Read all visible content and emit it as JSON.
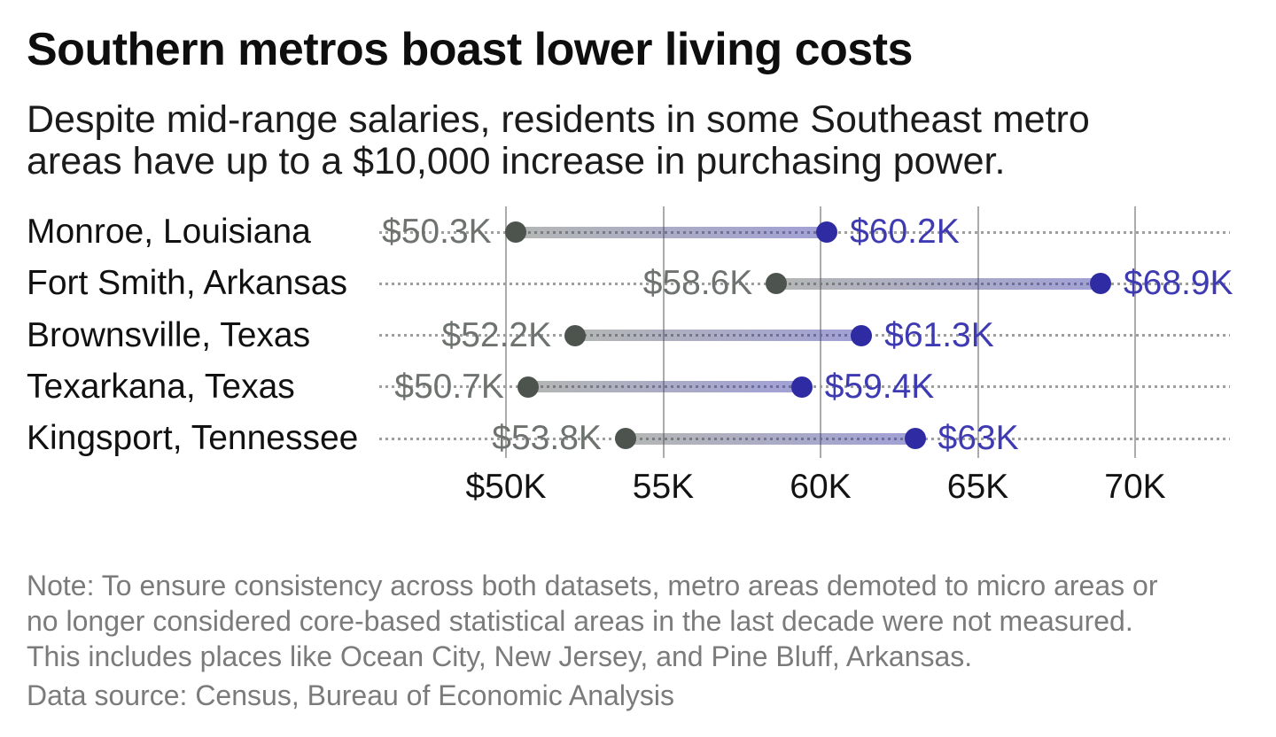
{
  "header": {
    "title": "Southern metros boast lower living costs",
    "subtitle_lines": [
      "Despite mid-range salaries, residents in some Southeast metro",
      "areas have up to a $10,000 increase in purchasing power."
    ]
  },
  "chart_data": {
    "type": "dumbbell",
    "title": "Southern metros boast lower living costs",
    "categories": [
      "Monroe, Louisiana",
      "Fort Smith, Arkansas",
      "Brownsville, Texas",
      "Texarkana, Texas",
      "Kingsport, Tennessee"
    ],
    "series": [
      {
        "name": "salary",
        "role": "start",
        "dot_color": "#4d544e",
        "label_color": "#6e736f",
        "values": [
          50.3,
          58.6,
          52.2,
          50.7,
          53.8
        ],
        "labels": [
          "$50.3K",
          "$58.6K",
          "$52.2K",
          "$50.7K",
          "$53.8K"
        ]
      },
      {
        "name": "purchasing_power",
        "role": "end",
        "dot_color": "#2e2ba3",
        "label_color": "#3e3ab2",
        "values": [
          60.2,
          68.9,
          61.3,
          59.4,
          63.0
        ],
        "labels": [
          "$60.2K",
          "$68.9K",
          "$61.3K",
          "$59.4K",
          "$63K"
        ]
      }
    ],
    "x_axis": {
      "ticks": [
        50,
        55,
        60,
        65,
        70
      ],
      "tick_labels": [
        "$50K",
        "55K",
        "60K",
        "65K",
        "70K"
      ],
      "range": [
        50,
        70
      ]
    },
    "grid": true,
    "legend": "none",
    "bar_gradient": [
      "rgba(77,84,78,0.42)",
      "rgba(47,44,163,0.45)"
    ],
    "gridline_color": "#ababab",
    "leader_dot_color": "#9e9e9e"
  },
  "footer": {
    "note_lines": [
      "Note: To ensure consistency across both datasets, metro areas demoted to micro areas or",
      "no longer considered core-based statistical areas in the last decade were not measured.",
      "This includes places like Ocean City, New Jersey, and Pine Bluff, Arkansas."
    ],
    "source": "Data source: Census, Bureau of Economic Analysis"
  }
}
